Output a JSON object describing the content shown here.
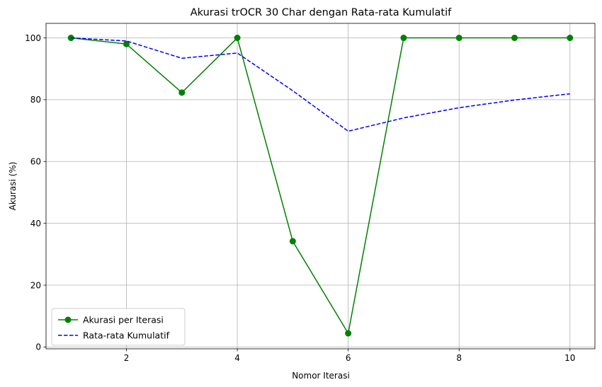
{
  "chart_data": {
    "type": "line",
    "title": "Akurasi trOCR 30 Char dengan Rata-rata Kumulatif",
    "xlabel": "Nomor Iterasi",
    "ylabel": "Akurasi (%)",
    "x": [
      1,
      2,
      3,
      4,
      5,
      6,
      7,
      8,
      9,
      10
    ],
    "xlim": [
      0.55,
      10.45
    ],
    "ylim": [
      -0.6,
      104.7
    ],
    "xticks": [
      2,
      4,
      6,
      8,
      10
    ],
    "yticks": [
      0,
      20,
      40,
      60,
      80,
      100
    ],
    "grid": true,
    "legend_position": "lower-left",
    "series": [
      {
        "name": "Akurasi per Iterasi",
        "color": "#008000",
        "style": "solid",
        "marker": "circle",
        "values": [
          100,
          98,
          82.3,
          100,
          34.2,
          4.4,
          100,
          100,
          100,
          100
        ]
      },
      {
        "name": "Rata-rata Kumulatif",
        "color": "#0000ff",
        "style": "dashed",
        "marker": "none",
        "values": [
          100,
          99,
          93.4,
          95.1,
          82.9,
          69.8,
          74.1,
          77.4,
          79.9,
          81.9
        ]
      }
    ]
  }
}
